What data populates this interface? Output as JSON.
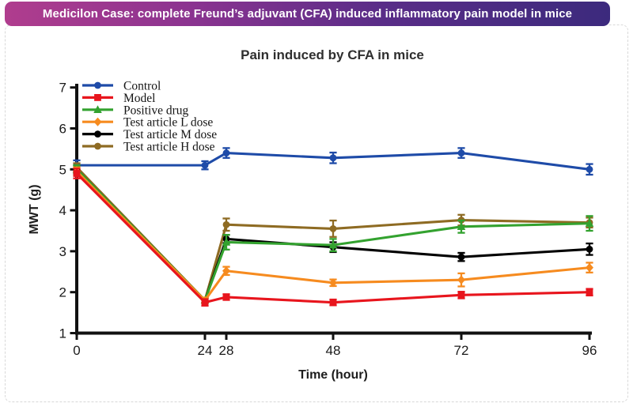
{
  "banner": {
    "text": "Medicilon Case: complete Freund’s adjuvant (CFA) induced inflammatory pain model in mice"
  },
  "colors": {
    "banner_gradient_left": "#b03d8e",
    "banner_gradient_mid": "#5a2d88",
    "banner_gradient_right": "#3c2a7d",
    "card_border": "#d8d8d8",
    "axis": "#111111"
  },
  "chart_data": {
    "type": "line",
    "title": "Pain induced by CFA in mice",
    "xlabel": "Time (hour)",
    "ylabel": "MWT (g)",
    "x": [
      0,
      24,
      28,
      48,
      72,
      96
    ],
    "xticks": [
      0,
      24,
      28,
      48,
      72,
      96
    ],
    "yticks": [
      1,
      2,
      3,
      4,
      5,
      6,
      7
    ],
    "xlim": [
      0,
      96
    ],
    "ylim": [
      1,
      7
    ],
    "grid": false,
    "error_bars": true,
    "legend_position": "top-left",
    "draw_order": [
      0,
      5,
      4,
      2,
      3,
      1
    ],
    "series": [
      {
        "name": "Control",
        "color": "#1e4ba8",
        "marker": "circle",
        "values": [
          5.1,
          5.1,
          5.4,
          5.28,
          5.4,
          5.0
        ],
        "errors": [
          0.12,
          0.1,
          0.12,
          0.13,
          0.12,
          0.13
        ]
      },
      {
        "name": "Model",
        "color": "#e8151d",
        "marker": "square",
        "values": [
          4.9,
          1.75,
          1.88,
          1.75,
          1.93,
          2.0
        ],
        "errors": [
          0.12,
          0.08,
          0.07,
          0.07,
          0.08,
          0.08
        ]
      },
      {
        "name": "Positive drug",
        "color": "#33a22f",
        "marker": "triangle",
        "values": [
          5.0,
          1.8,
          3.22,
          3.15,
          3.6,
          3.68
        ],
        "errors": [
          0.1,
          0.06,
          0.18,
          0.15,
          0.15,
          0.18
        ]
      },
      {
        "name": "Test article L dose",
        "color": "#f68b1f",
        "marker": "diamond",
        "values": [
          4.95,
          1.8,
          2.52,
          2.23,
          2.3,
          2.6
        ],
        "errors": [
          0.1,
          0.06,
          0.1,
          0.08,
          0.16,
          0.12
        ]
      },
      {
        "name": "Test article M dose",
        "color": "#000000",
        "marker": "circle",
        "values": [
          5.0,
          1.8,
          3.3,
          3.1,
          2.86,
          3.05
        ],
        "errors": [
          0.1,
          0.06,
          0.1,
          0.12,
          0.1,
          0.14
        ]
      },
      {
        "name": "Test article H dose",
        "color": "#8e6b23",
        "marker": "circle",
        "values": [
          5.05,
          1.8,
          3.65,
          3.55,
          3.76,
          3.7
        ],
        "errors": [
          0.1,
          0.06,
          0.15,
          0.2,
          0.13,
          0.12
        ]
      }
    ]
  }
}
